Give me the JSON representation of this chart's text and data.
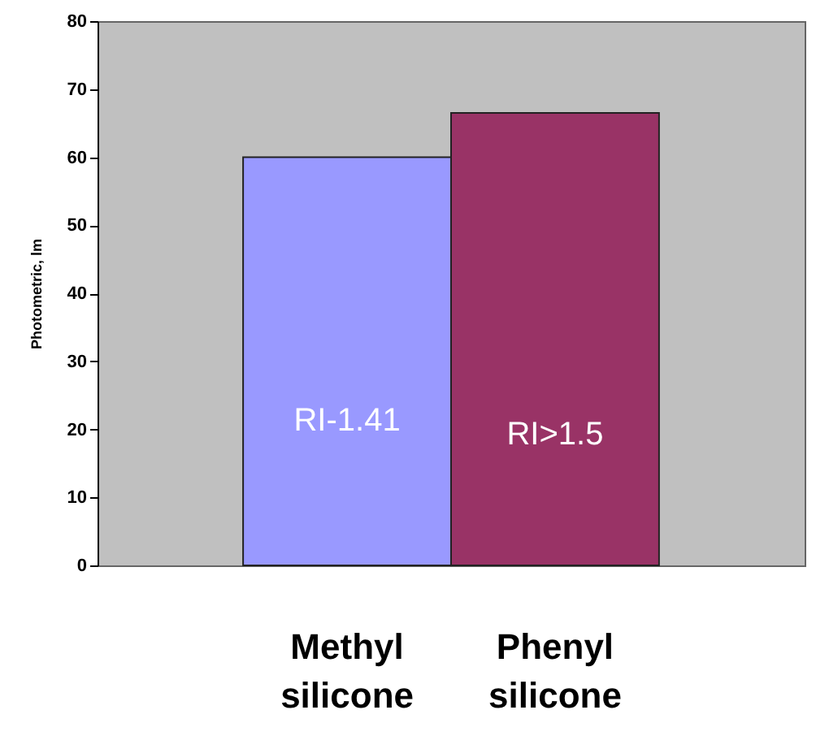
{
  "chart_data": {
    "type": "bar",
    "categories": [
      "Methyl silicone",
      "Phenyl silicone"
    ],
    "values": [
      60,
      66.5
    ],
    "colors": [
      "#9999ff",
      "#993366"
    ],
    "ylabel": "Photometric, lm",
    "ylim": [
      0,
      80
    ],
    "yticks": [
      0,
      10,
      20,
      30,
      40,
      50,
      60,
      70,
      80
    ],
    "annotations": [
      "RI-1.41",
      "RI>1.5"
    ],
    "grid": false
  }
}
